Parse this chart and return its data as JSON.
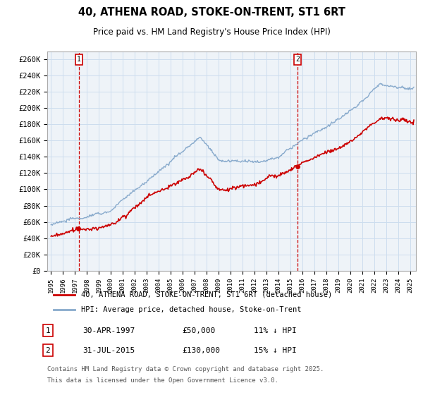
{
  "title": "40, ATHENA ROAD, STOKE-ON-TRENT, ST1 6RT",
  "subtitle": "Price paid vs. HM Land Registry's House Price Index (HPI)",
  "ylabel_ticks": [
    "£0",
    "£20K",
    "£40K",
    "£60K",
    "£80K",
    "£100K",
    "£120K",
    "£140K",
    "£160K",
    "£180K",
    "£200K",
    "£220K",
    "£240K",
    "£260K"
  ],
  "ytick_values": [
    0,
    20000,
    40000,
    60000,
    80000,
    100000,
    120000,
    140000,
    160000,
    180000,
    200000,
    220000,
    240000,
    260000
  ],
  "ylim": [
    0,
    270000
  ],
  "legend_line1": "40, ATHENA ROAD, STOKE-ON-TRENT, ST1 6RT (detached house)",
  "legend_line2": "HPI: Average price, detached house, Stoke-on-Trent",
  "annotation1_label": "1",
  "annotation1_date": "30-APR-1997",
  "annotation1_price": "£50,000",
  "annotation1_hpi": "11% ↓ HPI",
  "annotation2_label": "2",
  "annotation2_date": "31-JUL-2015",
  "annotation2_price": "£130,000",
  "annotation2_hpi": "15% ↓ HPI",
  "footnote_line1": "Contains HM Land Registry data © Crown copyright and database right 2025.",
  "footnote_line2": "This data is licensed under the Open Government Licence v3.0.",
  "line_color_red": "#cc0000",
  "line_color_blue": "#88aacc",
  "grid_color": "#ccddee",
  "background_color": "#ffffff",
  "plot_bg_color": "#eef3f8",
  "annotation_box_color": "#cc0000",
  "xlim_left": 1994.7,
  "xlim_right": 2025.5
}
